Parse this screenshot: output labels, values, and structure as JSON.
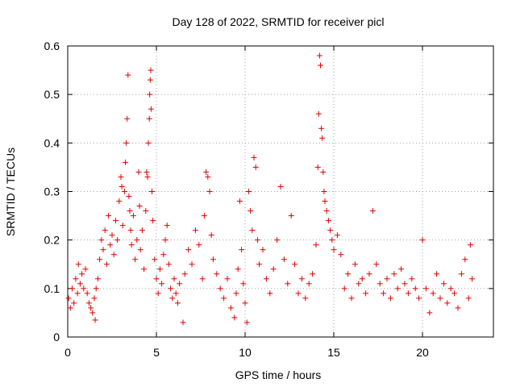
{
  "chart_data": {
    "type": "scatter",
    "title": "Day 128 of 2022, SRMTID for receiver picl",
    "xlabel": "GPS time / hours",
    "ylabel": "SRMTID / TECUs",
    "xlim": [
      0,
      24
    ],
    "ylim": [
      0,
      0.6
    ],
    "xticks": [
      0,
      5,
      10,
      15,
      20
    ],
    "xtick_labels": [
      "0",
      "5",
      "10",
      "15",
      "20"
    ],
    "yticks": [
      0,
      0.1,
      0.2,
      0.3,
      0.4,
      0.5,
      0.6
    ],
    "ytick_labels": [
      "0",
      "0.1",
      "0.2",
      "0.3",
      "0.4",
      "0.5",
      "0.6"
    ],
    "grid": true,
    "marker": "+",
    "color": "#e00000",
    "series": [
      {
        "name": "SRMTID",
        "points": [
          [
            0.05,
            0.08
          ],
          [
            0.15,
            0.06
          ],
          [
            0.25,
            0.1
          ],
          [
            0.35,
            0.07
          ],
          [
            0.45,
            0.12
          ],
          [
            0.55,
            0.09
          ],
          [
            0.6,
            0.15
          ],
          [
            0.7,
            0.11
          ],
          [
            0.8,
            0.13
          ],
          [
            0.9,
            0.1
          ],
          [
            1.0,
            0.14
          ],
          [
            1.1,
            0.09
          ],
          [
            1.2,
            0.07
          ],
          [
            1.3,
            0.06
          ],
          [
            1.4,
            0.05
          ],
          [
            1.5,
            0.08
          ],
          [
            1.55,
            0.035
          ],
          [
            1.6,
            0.1
          ],
          [
            1.7,
            0.12
          ],
          [
            1.8,
            0.16
          ],
          [
            1.9,
            0.2
          ],
          [
            2.0,
            0.18
          ],
          [
            2.1,
            0.22
          ],
          [
            2.2,
            0.15
          ],
          [
            2.3,
            0.25
          ],
          [
            2.4,
            0.19
          ],
          [
            2.5,
            0.21
          ],
          [
            2.6,
            0.17
          ],
          [
            2.7,
            0.24
          ],
          [
            2.8,
            0.2
          ],
          [
            2.9,
            0.28
          ],
          [
            3.0,
            0.33
          ],
          [
            3.05,
            0.31
          ],
          [
            3.1,
            0.23
          ],
          [
            3.2,
            0.3
          ],
          [
            3.25,
            0.36
          ],
          [
            3.3,
            0.4
          ],
          [
            3.35,
            0.45
          ],
          [
            3.4,
            0.54
          ],
          [
            3.45,
            0.29
          ],
          [
            3.5,
            0.26
          ],
          [
            3.55,
            0.22
          ],
          [
            3.6,
            0.19
          ],
          [
            3.7,
            0.25
          ],
          [
            3.8,
            0.16
          ],
          [
            3.9,
            0.2
          ],
          [
            4.0,
            0.34
          ],
          [
            4.05,
            0.27
          ],
          [
            4.1,
            0.18
          ],
          [
            4.2,
            0.22
          ],
          [
            4.3,
            0.14
          ],
          [
            4.4,
            0.26
          ],
          [
            4.45,
            0.34
          ],
          [
            4.5,
            0.33
          ],
          [
            4.55,
            0.4
          ],
          [
            4.6,
            0.45
          ],
          [
            4.62,
            0.5
          ],
          [
            4.65,
            0.53
          ],
          [
            4.68,
            0.55
          ],
          [
            4.7,
            0.47
          ],
          [
            4.75,
            0.3
          ],
          [
            4.8,
            0.24
          ],
          [
            4.9,
            0.16
          ],
          [
            5.0,
            0.12
          ],
          [
            5.1,
            0.09
          ],
          [
            5.2,
            0.14
          ],
          [
            5.3,
            0.11
          ],
          [
            5.4,
            0.17
          ],
          [
            5.5,
            0.2
          ],
          [
            5.6,
            0.23
          ],
          [
            5.7,
            0.15
          ],
          [
            5.8,
            0.1
          ],
          [
            5.9,
            0.08
          ],
          [
            6.0,
            0.12
          ],
          [
            6.1,
            0.09
          ],
          [
            6.2,
            0.07
          ],
          [
            6.3,
            0.11
          ],
          [
            6.5,
            0.03
          ],
          [
            6.6,
            0.13
          ],
          [
            6.8,
            0.18
          ],
          [
            7.0,
            0.15
          ],
          [
            7.2,
            0.22
          ],
          [
            7.4,
            0.19
          ],
          [
            7.6,
            0.12
          ],
          [
            7.7,
            0.25
          ],
          [
            7.8,
            0.34
          ],
          [
            7.9,
            0.33
          ],
          [
            8.0,
            0.3
          ],
          [
            8.1,
            0.21
          ],
          [
            8.2,
            0.16
          ],
          [
            8.4,
            0.13
          ],
          [
            8.6,
            0.1
          ],
          [
            8.8,
            0.08
          ],
          [
            9.0,
            0.12
          ],
          [
            9.2,
            0.06
          ],
          [
            9.4,
            0.04
          ],
          [
            9.5,
            0.09
          ],
          [
            9.6,
            0.14
          ],
          [
            9.7,
            0.28
          ],
          [
            9.8,
            0.18
          ],
          [
            9.9,
            0.11
          ],
          [
            10.0,
            0.07
          ],
          [
            10.1,
            0.03
          ],
          [
            10.2,
            0.3
          ],
          [
            10.3,
            0.26
          ],
          [
            10.4,
            0.22
          ],
          [
            10.5,
            0.37
          ],
          [
            10.6,
            0.35
          ],
          [
            10.7,
            0.2
          ],
          [
            10.8,
            0.15
          ],
          [
            11.0,
            0.18
          ],
          [
            11.2,
            0.12
          ],
          [
            11.4,
            0.09
          ],
          [
            11.6,
            0.14
          ],
          [
            11.8,
            0.2
          ],
          [
            12.0,
            0.31
          ],
          [
            12.2,
            0.16
          ],
          [
            12.4,
            0.11
          ],
          [
            12.6,
            0.25
          ],
          [
            12.8,
            0.15
          ],
          [
            13.0,
            0.09
          ],
          [
            13.2,
            0.12
          ],
          [
            13.4,
            0.08
          ],
          [
            13.6,
            0.11
          ],
          [
            13.8,
            0.13
          ],
          [
            14.0,
            0.19
          ],
          [
            14.1,
            0.35
          ],
          [
            14.15,
            0.46
          ],
          [
            14.2,
            0.58
          ],
          [
            14.25,
            0.56
          ],
          [
            14.3,
            0.43
          ],
          [
            14.35,
            0.41
          ],
          [
            14.4,
            0.34
          ],
          [
            14.45,
            0.3
          ],
          [
            14.5,
            0.28
          ],
          [
            14.6,
            0.26
          ],
          [
            14.7,
            0.24
          ],
          [
            14.8,
            0.22
          ],
          [
            14.9,
            0.2
          ],
          [
            15.0,
            0.18
          ],
          [
            15.2,
            0.21
          ],
          [
            15.4,
            0.17
          ],
          [
            15.6,
            0.1
          ],
          [
            15.8,
            0.13
          ],
          [
            16.0,
            0.08
          ],
          [
            16.2,
            0.15
          ],
          [
            16.4,
            0.11
          ],
          [
            16.6,
            0.12
          ],
          [
            16.8,
            0.09
          ],
          [
            17.0,
            0.13
          ],
          [
            17.2,
            0.26
          ],
          [
            17.4,
            0.15
          ],
          [
            17.6,
            0.11
          ],
          [
            17.8,
            0.09
          ],
          [
            18.0,
            0.12
          ],
          [
            18.2,
            0.08
          ],
          [
            18.4,
            0.13
          ],
          [
            18.6,
            0.1
          ],
          [
            18.8,
            0.14
          ],
          [
            19.0,
            0.11
          ],
          [
            19.2,
            0.09
          ],
          [
            19.4,
            0.12
          ],
          [
            19.6,
            0.1
          ],
          [
            19.8,
            0.08
          ],
          [
            20.0,
            0.2
          ],
          [
            20.2,
            0.1
          ],
          [
            20.4,
            0.05
          ],
          [
            20.6,
            0.09
          ],
          [
            20.8,
            0.13
          ],
          [
            21.0,
            0.08
          ],
          [
            21.2,
            0.11
          ],
          [
            21.4,
            0.07
          ],
          [
            21.6,
            0.1
          ],
          [
            21.8,
            0.09
          ],
          [
            22.0,
            0.06
          ],
          [
            22.2,
            0.13
          ],
          [
            22.4,
            0.16
          ],
          [
            22.6,
            0.08
          ],
          [
            22.7,
            0.19
          ],
          [
            22.8,
            0.12
          ]
        ]
      }
    ]
  }
}
